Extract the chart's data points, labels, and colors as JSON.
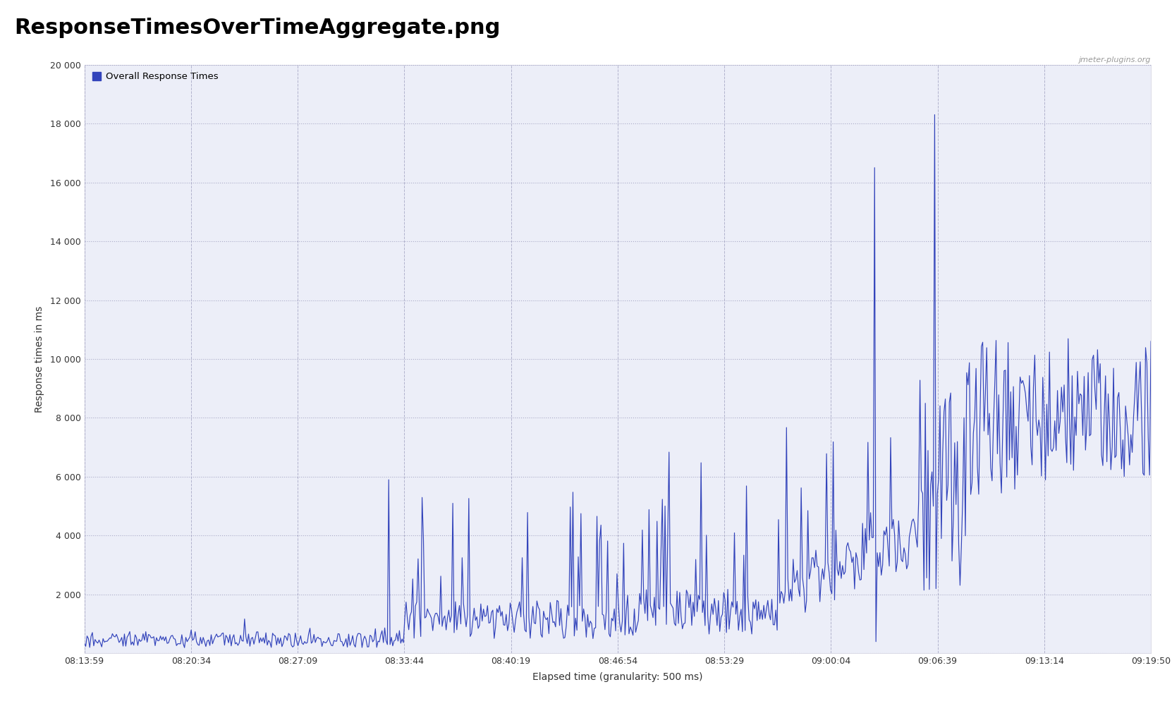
{
  "title": "ResponseTimesOverTimeAggregate.png",
  "legend_label": "Overall Response Times",
  "legend_color": "#3344bb",
  "line_color": "#3344bb",
  "xlabel": "Elapsed time (granularity: 500 ms)",
  "ylabel": "Response times in ms",
  "ylim": [
    0,
    20000
  ],
  "ytick_values": [
    0,
    2000,
    4000,
    6000,
    8000,
    10000,
    12000,
    14000,
    16000,
    18000,
    20000
  ],
  "ytick_labels": [
    "",
    "2 000",
    "4 000",
    "6 000",
    "8 000",
    "10 000",
    "12 000",
    "14 000",
    "16 000",
    "18 000",
    "20 000"
  ],
  "xtick_labels": [
    "08:13:59",
    "08:20:34",
    "08:27:09",
    "08:33:44",
    "08:40:19",
    "08:46:54",
    "08:53:29",
    "09:00:04",
    "09:06:39",
    "09:13:14",
    "09:19:50"
  ],
  "plot_bg_color": "#eceef8",
  "title_fontsize": 22,
  "watermark": "jmeter-plugins.org"
}
